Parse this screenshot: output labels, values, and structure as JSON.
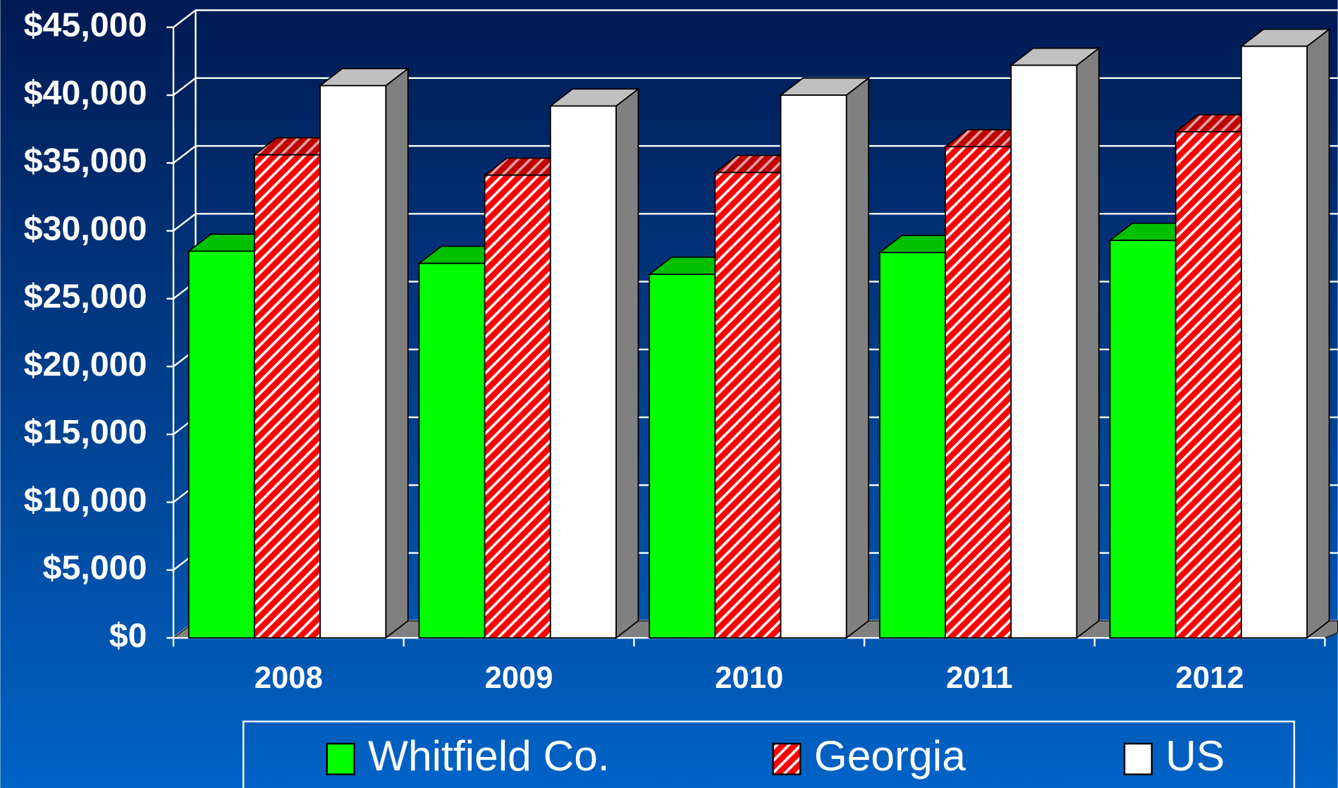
{
  "chart_data": {
    "type": "bar3d",
    "categories": [
      "2008",
      "2009",
      "2010",
      "2011",
      "2012"
    ],
    "series": [
      {
        "name": "Whitfield Co.",
        "color": "#00ff00",
        "values": [
          28500,
          27600,
          26800,
          28400,
          29300
        ]
      },
      {
        "name": "Georgia",
        "color": "#ff0000",
        "hatch": true,
        "values": [
          35600,
          34100,
          34300,
          36200,
          37300
        ]
      },
      {
        "name": "US",
        "color": "#ffffff",
        "values": [
          40700,
          39200,
          40000,
          42200,
          43600
        ]
      }
    ],
    "ylim": [
      0,
      45000
    ],
    "yticks": [
      {
        "value": 0,
        "label": "$0"
      },
      {
        "value": 5000,
        "label": "$5,000"
      },
      {
        "value": 10000,
        "label": "$10,000"
      },
      {
        "value": 15000,
        "label": "$15,000"
      },
      {
        "value": 20000,
        "label": "$20,000"
      },
      {
        "value": 25000,
        "label": "$25,000"
      },
      {
        "value": 30000,
        "label": "$30,000"
      },
      {
        "value": 35000,
        "label": "$35,000"
      },
      {
        "value": 40000,
        "label": "$40,000"
      },
      {
        "value": 45000,
        "label": "$45,000"
      }
    ],
    "grid": true,
    "legend": "bottom"
  }
}
